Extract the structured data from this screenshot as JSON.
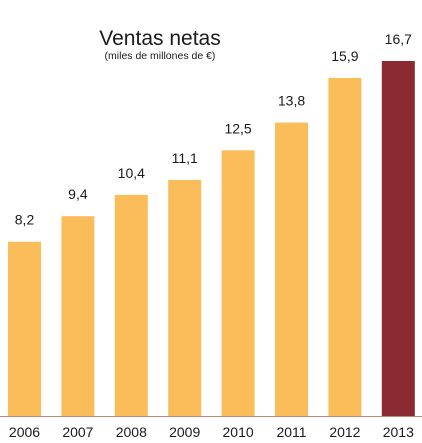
{
  "chart_data": {
    "type": "bar",
    "title": "Ventas netas",
    "subtitle": "(miles de millones de €)",
    "xlabel": "",
    "ylabel": "",
    "categories": [
      "2006",
      "2007",
      "2008",
      "2009",
      "2010",
      "2011",
      "2012",
      "2013"
    ],
    "values": [
      8.2,
      9.4,
      10.4,
      11.1,
      12.5,
      13.8,
      15.9,
      16.7
    ],
    "value_labels": [
      "8,2",
      "9,4",
      "10,4",
      "11,1",
      "12,5",
      "13,8",
      "15,9",
      "16,7"
    ],
    "ylim": [
      0,
      16.7
    ],
    "grid": false,
    "legend": "none",
    "colors": {
      "bar": "#fbbd59",
      "highlight_bar": "#8b2a30",
      "baseline": "#c08a7a",
      "text": "#1a1a1a"
    },
    "highlight_index": 7
  }
}
